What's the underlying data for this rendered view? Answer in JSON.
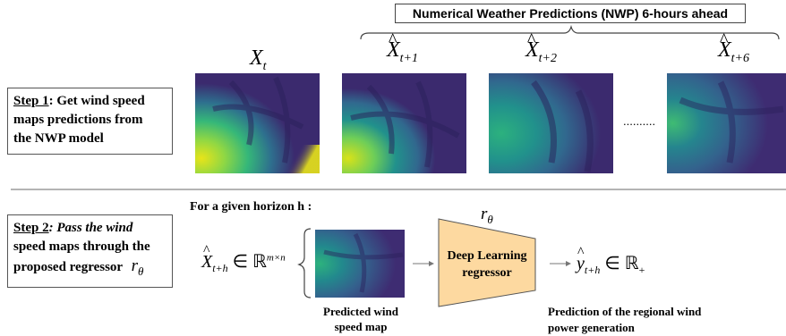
{
  "header": {
    "nwp_title": "Numerical Weather Predictions (NWP) 6-hours ahead"
  },
  "step1": {
    "name": "Step 1",
    "text_line1": ": Get wind speed",
    "text_line2": "maps predictions from",
    "text_line3": "the NWP model"
  },
  "step2": {
    "name": "Step 2",
    "text_line1": ": Pass the wind",
    "text_line2": "speed maps through the",
    "text_line3": "proposed regressor"
  },
  "maps": [
    {
      "label_base": "X",
      "label_sub": "t",
      "hat": false
    },
    {
      "label_base": "X",
      "label_sub": "t+1",
      "hat": true
    },
    {
      "label_base": "X",
      "label_sub": "t+2",
      "hat": true
    },
    {
      "label_base": "X",
      "label_sub": "t+6",
      "hat": true
    }
  ],
  "ellipsis": "..........",
  "horizon_title": "For a given horizon h :",
  "input": {
    "base": "X",
    "sub": "t+h",
    "member": "∈ ℝ",
    "sup": "m×n",
    "caption_line1": "Predicted  wind",
    "caption_line2": "speed map"
  },
  "regressor": {
    "symbol": "r",
    "symbol_sub": "θ",
    "line1": "Deep Learning",
    "line2": "regressor",
    "fill": "#fdd9a0"
  },
  "output": {
    "base": "y",
    "sub": "t+h",
    "member": "∈ ℝ",
    "sub_set": "+",
    "caption_line1": "Prediction of the regional wind",
    "caption_line2": "power generation"
  },
  "regressor_symbol_inline": {
    "base": "r",
    "sub": "θ"
  },
  "colors": {
    "viridis_dark": "#3b2a6e",
    "viridis_mid": "#2e6f8e",
    "viridis_green": "#35b779",
    "viridis_yellow": "#e8e419"
  }
}
